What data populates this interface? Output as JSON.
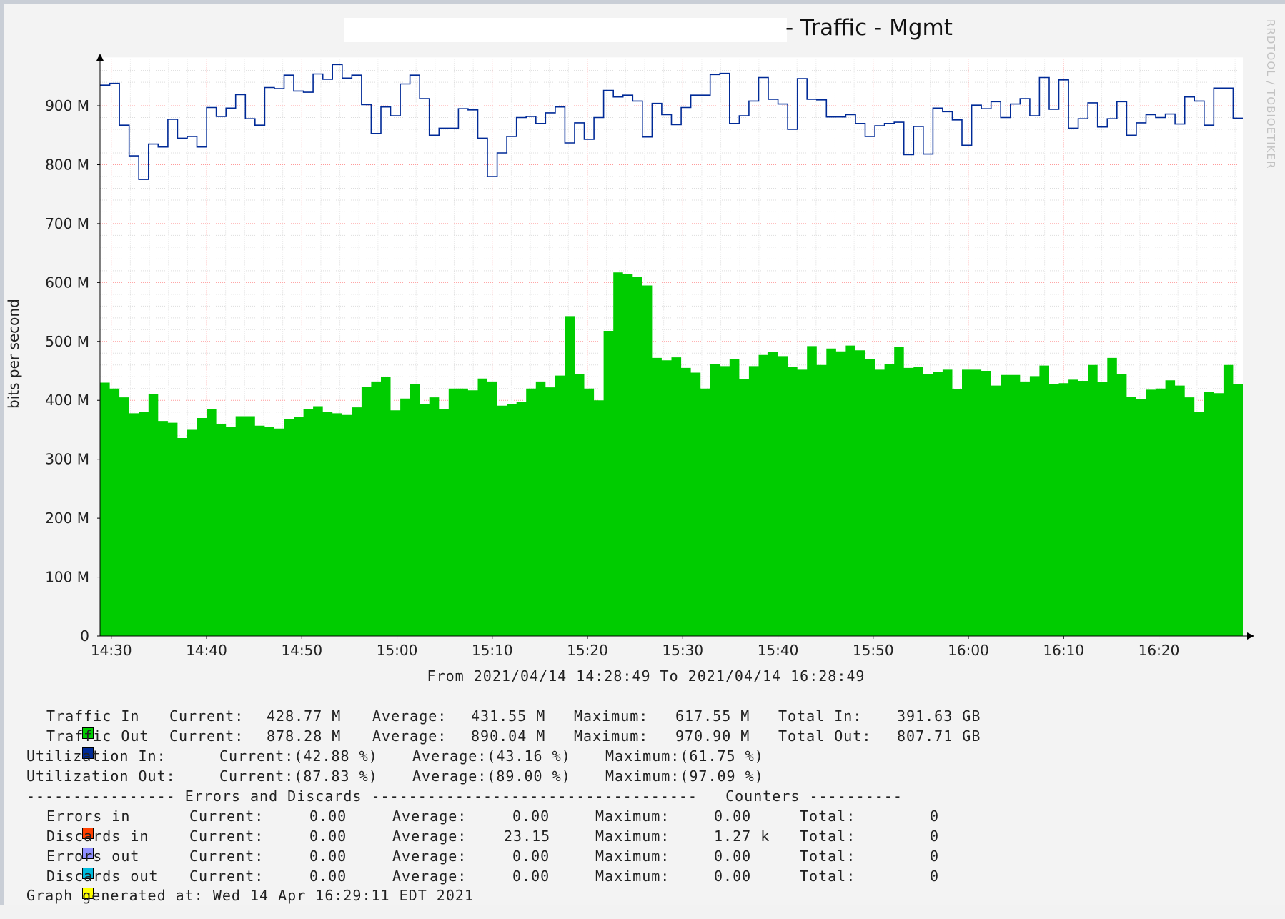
{
  "title": "- Traffic - Mgmt",
  "watermark": "RRDTOOL / TOBIOETIKER",
  "range_text": "From 2021/04/14 14:28:49 To 2021/04/14 16:28:49",
  "footer": "Graph generated at: Wed 14 Apr 16:29:11 EDT 2021",
  "colors": {
    "traffic_in": "#00cc00",
    "traffic_out": "#002a97",
    "errors_in": "#ff4000",
    "discards_in": "#8f8fff",
    "errors_out": "#00bbdd",
    "discards_out": "#ffff00",
    "grid_minor": "#dddddd",
    "grid_major": "#ff9999"
  },
  "legend": {
    "traffic": [
      {
        "name": "Traffic In",
        "current_label": "Current:",
        "current": "428.77 M",
        "average_label": "Average:",
        "average": "431.55 M",
        "maximum_label": "Maximum:",
        "maximum": "617.55 M",
        "total_label": "Total In:",
        "total": "391.63 GB",
        "color_key": "traffic_in"
      },
      {
        "name": "Traffic Out",
        "current_label": "Current:",
        "current": "878.28 M",
        "average_label": "Average:",
        "average": "890.04 M",
        "maximum_label": "Maximum:",
        "maximum": "970.90 M",
        "total_label": "Total Out:",
        "total": "807.71 GB",
        "color_key": "traffic_out"
      }
    ],
    "utilization": [
      {
        "name": "Utilization In:",
        "current": "Current:(42.88 %)",
        "average": "Average:(43.16 %)",
        "maximum": "Maximum:(61.75 %)"
      },
      {
        "name": "Utilization Out:",
        "current": "Current:(87.83 %)",
        "average": "Average:(89.00 %)",
        "maximum": "Maximum:(97.09 %)"
      }
    ],
    "section_header": "---------------- Errors and Discards -----------------------------------   Counters ----------",
    "errors": [
      {
        "name": "Errors in",
        "current_label": "Current:",
        "current": "0.00",
        "average_label": "Average:",
        "average": "0.00",
        "maximum_label": "Maximum:",
        "maximum": "0.00",
        "total_label": "Total:",
        "total": "0",
        "color_key": "errors_in"
      },
      {
        "name": "Discards in",
        "current_label": "Current:",
        "current": "0.00",
        "average_label": "Average:",
        "average": "23.15",
        "maximum_label": "Maximum:",
        "maximum": "1.27 k",
        "total_label": "Total:",
        "total": "0",
        "color_key": "discards_in"
      },
      {
        "name": "Errors out",
        "current_label": "Current:",
        "current": "0.00",
        "average_label": "Average:",
        "average": "0.00",
        "maximum_label": "Maximum:",
        "maximum": "0.00",
        "total_label": "Total:",
        "total": "0",
        "color_key": "errors_out"
      },
      {
        "name": "Discards out",
        "current_label": "Current:",
        "current": "0.00",
        "average_label": "Average:",
        "average": "0.00",
        "maximum_label": "Maximum:",
        "maximum": "0.00",
        "total_label": "Total:",
        "total": "0",
        "color_key": "discards_out"
      }
    ]
  },
  "chart_data": {
    "type": "area",
    "ylabel": "bits per second",
    "ylim": [
      0,
      970
    ],
    "yticks": [
      0,
      100,
      200,
      300,
      400,
      500,
      600,
      700,
      800,
      900
    ],
    "ytick_labels": [
      "0",
      "100 M",
      "200 M",
      "300 M",
      "400 M",
      "500 M",
      "600 M",
      "700 M",
      "800 M",
      "900 M"
    ],
    "x_start": "14:28:49",
    "x_end": "16:28:49",
    "xticks": [
      "14:30",
      "14:40",
      "14:50",
      "15:00",
      "15:10",
      "15:20",
      "15:30",
      "15:40",
      "15:50",
      "16:00",
      "16:10",
      "16:20"
    ],
    "grid": true,
    "series": [
      {
        "name": "Traffic In",
        "style": "area",
        "color_key": "traffic_in",
        "values": [
          430,
          420,
          405,
          378,
          380,
          410,
          365,
          362,
          336,
          350,
          370,
          385,
          360,
          355,
          373,
          373,
          357,
          355,
          352,
          368,
          372,
          385,
          390,
          380,
          378,
          375,
          388,
          423,
          432,
          440,
          383,
          403,
          428,
          393,
          405,
          385,
          420,
          420,
          417,
          437,
          432,
          391,
          393,
          397,
          420,
          432,
          422,
          442,
          543,
          445,
          420,
          400,
          518,
          617,
          614,
          610,
          595,
          472,
          468,
          473,
          455,
          447,
          420,
          462,
          458,
          470,
          436,
          458,
          477,
          482,
          475,
          457,
          452,
          492,
          460,
          488,
          483,
          493,
          485,
          470,
          452,
          461,
          491,
          455,
          457,
          445,
          448,
          452,
          419,
          452,
          452,
          450,
          425,
          443,
          443,
          432,
          441,
          459,
          428,
          429,
          435,
          433,
          460,
          431,
          472,
          444,
          406,
          402,
          418,
          420,
          434,
          425,
          405,
          380,
          414,
          412,
          460,
          428
        ]
      },
      {
        "name": "Traffic Out",
        "style": "line",
        "color_key": "traffic_out",
        "values": [
          935,
          938,
          867,
          815,
          775,
          835,
          830,
          877,
          845,
          848,
          830,
          897,
          882,
          896,
          919,
          878,
          867,
          931,
          929,
          952,
          925,
          923,
          954,
          945,
          970,
          947,
          952,
          902,
          853,
          898,
          883,
          937,
          952,
          912,
          850,
          862,
          862,
          895,
          893,
          845,
          780,
          820,
          848,
          880,
          882,
          870,
          888,
          898,
          837,
          871,
          843,
          880,
          926,
          915,
          918,
          908,
          847,
          904,
          885,
          868,
          897,
          918,
          918,
          953,
          955,
          870,
          883,
          908,
          948,
          911,
          903,
          860,
          946,
          911,
          910,
          881,
          881,
          885,
          870,
          848,
          866,
          870,
          872,
          817,
          865,
          818,
          896,
          890,
          876,
          833,
          901,
          895,
          907,
          880,
          903,
          912,
          883,
          948,
          894,
          944,
          862,
          878,
          905,
          864,
          878,
          907,
          850,
          871,
          885,
          880,
          886,
          869,
          915,
          908,
          867,
          930,
          930,
          879
        ]
      }
    ]
  }
}
